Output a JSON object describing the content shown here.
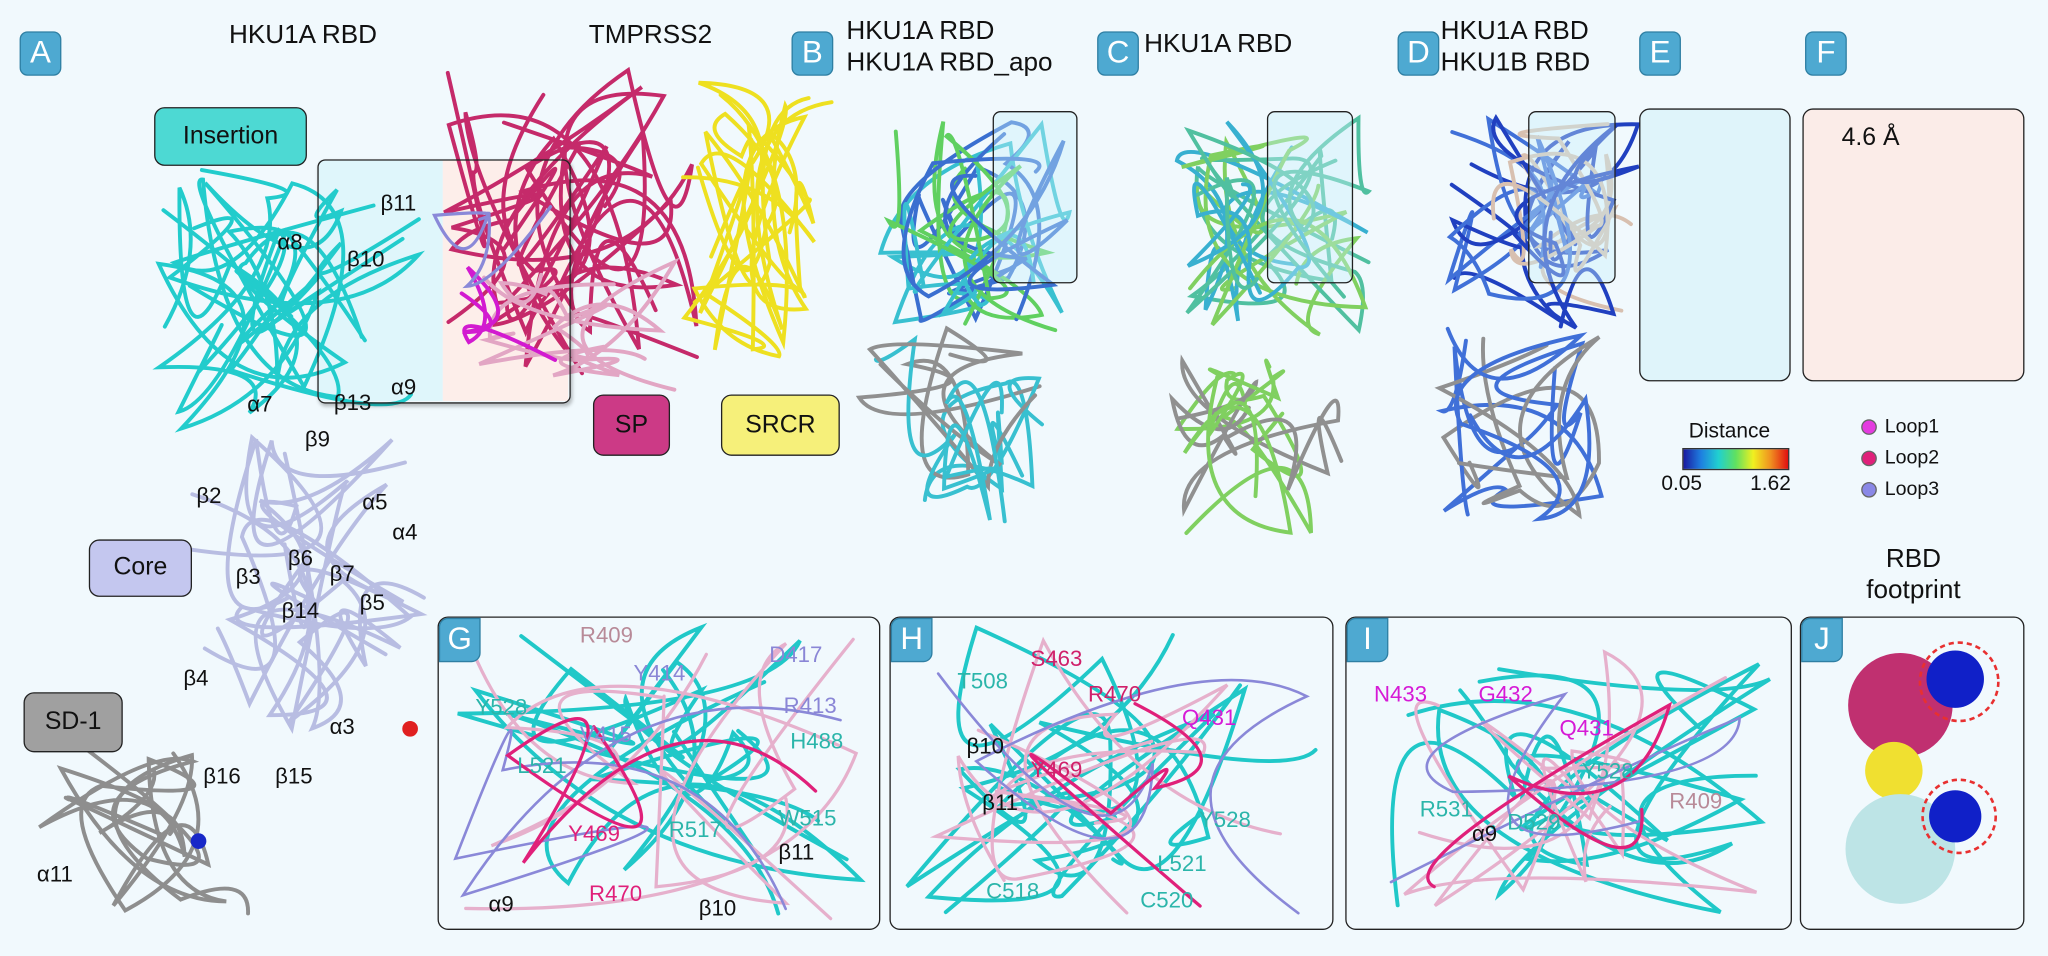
{
  "panel_a": {
    "badge": "A",
    "title_rbd": "HKU1A RBD",
    "title_tmprss2": "TMPRSS2",
    "domains": {
      "insertion": "Insertion",
      "core": "Core",
      "sd1": "SD-1",
      "sp": "SP",
      "srcr": "SRCR"
    },
    "domain_colors": {
      "insertion": "#4dd9d3",
      "core": "#c4c7ef",
      "sd1": "#a0a0a0",
      "sp": "#cc3a86",
      "srcr": "#f6f07a"
    },
    "ss_labels": [
      "β11",
      "α8",
      "β10",
      "α9",
      "β13",
      "α7",
      "β9",
      "β2",
      "α5",
      "α4",
      "β6",
      "β7",
      "β3",
      "β14",
      "β5",
      "β4",
      "α3",
      "β16",
      "β15",
      "α11"
    ]
  },
  "panel_b": {
    "badge": "B",
    "lines": [
      "HKU1A RBD",
      "HKU1A RBD_apo"
    ]
  },
  "panel_c": {
    "badge": "C",
    "lines": [
      "HKU1A RBD"
    ]
  },
  "panel_d": {
    "badge": "D",
    "lines": [
      "HKU1A RBD",
      "HKU1B RBD"
    ]
  },
  "panel_e": {
    "badge": "E"
  },
  "panel_f": {
    "badge": "F",
    "distance": "4.6 Å"
  },
  "distance_legend": {
    "title": "Distance",
    "min": "0.05",
    "max": "1.62",
    "colors": [
      "#1a1aa0",
      "#1e7fe0",
      "#20d0d0",
      "#60e060",
      "#f0f020",
      "#f09020",
      "#e01010"
    ]
  },
  "loop_legend": [
    {
      "label": "Loop1",
      "color": "#e43ce0"
    },
    {
      "label": "Loop2",
      "color": "#e0207a"
    },
    {
      "label": "Loop3",
      "color": "#8a88e6"
    }
  ],
  "panel_g": {
    "badge": "G",
    "labels": [
      {
        "text": "R409",
        "color": "#b88a98"
      },
      {
        "text": "Y414",
        "color": "#8a86d6"
      },
      {
        "text": "D417",
        "color": "#8a86d6"
      },
      {
        "text": "R413",
        "color": "#8a86d6"
      },
      {
        "text": "H488",
        "color": "#2bb5aa"
      },
      {
        "text": "Y528",
        "color": "#2bb5aa"
      },
      {
        "text": "V415",
        "color": "#8a86d6"
      },
      {
        "text": "L521",
        "color": "#2bb5aa"
      },
      {
        "text": "Y469",
        "color": "#e0207a"
      },
      {
        "text": "R517",
        "color": "#2bb5aa"
      },
      {
        "text": "W515",
        "color": "#2bb5aa"
      },
      {
        "text": "β11",
        "color": "#111111"
      },
      {
        "text": "R470",
        "color": "#e0207a"
      },
      {
        "text": "β10",
        "color": "#111111"
      },
      {
        "text": "α9",
        "color": "#111111"
      }
    ]
  },
  "panel_h": {
    "badge": "H",
    "labels": [
      {
        "text": "T508",
        "color": "#2bb5aa"
      },
      {
        "text": "S463",
        "color": "#d0206a"
      },
      {
        "text": "R470",
        "color": "#d0206a"
      },
      {
        "text": "Q431",
        "color": "#d61ad6"
      },
      {
        "text": "β10",
        "color": "#111111"
      },
      {
        "text": "Y469",
        "color": "#d0206a"
      },
      {
        "text": "β11",
        "color": "#111111"
      },
      {
        "text": "Y528",
        "color": "#2bb5aa"
      },
      {
        "text": "L521",
        "color": "#2bb5aa"
      },
      {
        "text": "C518",
        "color": "#2bb5aa"
      },
      {
        "text": "C520",
        "color": "#2bb5aa"
      }
    ]
  },
  "panel_i": {
    "badge": "I",
    "labels": [
      {
        "text": "N433",
        "color": "#d61ad6"
      },
      {
        "text": "G432",
        "color": "#d61ad6"
      },
      {
        "text": "Q431",
        "color": "#d61ad6"
      },
      {
        "text": "Y528",
        "color": "#2bb5aa"
      },
      {
        "text": "R409",
        "color": "#b88a98"
      },
      {
        "text": "R531",
        "color": "#2bb5aa"
      },
      {
        "text": "α9",
        "color": "#111111"
      },
      {
        "text": "D529",
        "color": "#2bb5aa"
      }
    ]
  },
  "panel_j": {
    "badge": "J",
    "title_line1": "RBD",
    "title_line2": "footprint"
  }
}
